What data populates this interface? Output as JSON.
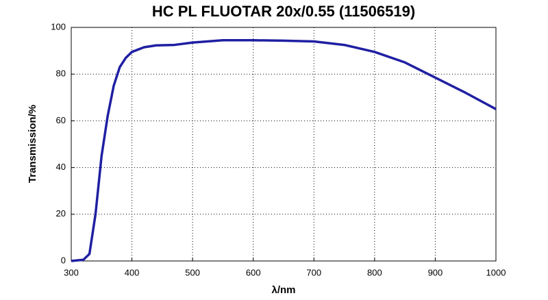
{
  "chart_data": {
    "type": "line",
    "title": "HC PL FLUOTAR 20x/0.55 (11506519)",
    "x_label": "λ/nm",
    "y_label": "Transmission/%",
    "x": [
      300,
      320,
      330,
      340,
      350,
      360,
      370,
      380,
      390,
      400,
      420,
      440,
      470,
      500,
      550,
      600,
      650,
      700,
      750,
      800,
      850,
      900,
      950,
      1000
    ],
    "series": [
      {
        "name": "Transmission",
        "color": "#1f1fa3",
        "values": [
          0,
          0.5,
          3,
          20,
          45,
          62,
          75,
          83,
          87,
          89.5,
          91.5,
          92.3,
          92.5,
          93.5,
          94.5,
          94.5,
          94.3,
          94,
          92.5,
          89.5,
          85,
          78.5,
          72,
          65
        ]
      }
    ],
    "xlim": [
      300,
      1000
    ],
    "xticks": [
      300,
      400,
      500,
      600,
      700,
      800,
      900,
      1000
    ],
    "ylim": [
      0,
      100
    ],
    "yticks": [
      0,
      20,
      40,
      60,
      80,
      100
    ],
    "grid": true
  }
}
